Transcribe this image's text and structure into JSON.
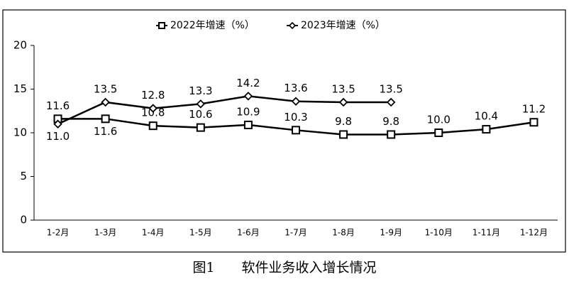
{
  "chart_data": {
    "type": "line",
    "caption": "图1　　软件业务收入增长情况",
    "categories": [
      "1-2月",
      "1-3月",
      "1-4月",
      "1-5月",
      "1-6月",
      "1-7月",
      "1-8月",
      "1-9月",
      "1-10月",
      "1-11月",
      "1-12月"
    ],
    "series": [
      {
        "name": "2022年增速（%）",
        "color": "#000000",
        "marker": "square",
        "values": [
          11.6,
          11.6,
          10.8,
          10.6,
          10.9,
          10.3,
          9.8,
          9.8,
          10.0,
          10.4,
          11.2
        ],
        "value_labels": [
          "11.6",
          "11.6",
          "10.8",
          "10.6",
          "10.9",
          "10.3",
          "9.8",
          "9.8",
          "10.0",
          "10.4",
          "11.2"
        ]
      },
      {
        "name": "2023年增速（%）",
        "color": "#000000",
        "marker": "diamond",
        "values": [
          11.0,
          13.5,
          12.8,
          13.3,
          14.2,
          13.6,
          13.5,
          13.5,
          null,
          null,
          null
        ],
        "value_labels": [
          "11.0",
          "13.5",
          "12.8",
          "13.3",
          "14.2",
          "13.6",
          "13.5",
          "13.5",
          null,
          null,
          null
        ]
      }
    ],
    "ylim": [
      0,
      20
    ],
    "yticks": [
      0,
      5,
      10,
      15,
      20
    ],
    "grid": false,
    "legend": "top"
  }
}
